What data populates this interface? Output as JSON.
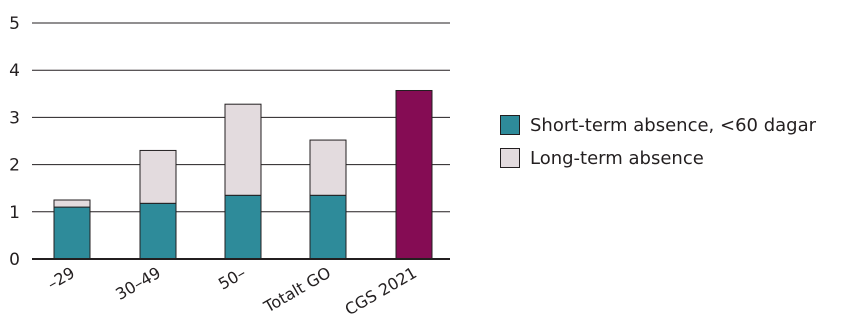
{
  "chart_data": {
    "type": "bar",
    "stacked": true,
    "categories": [
      "–29",
      "30–49",
      "50–",
      "Totalt GO",
      "CGS 2021"
    ],
    "series": [
      {
        "name": "Short-term absence, <60 dagar",
        "values": [
          1.1,
          1.18,
          1.35,
          1.35,
          null
        ],
        "color": "#2e8b9a"
      },
      {
        "name": "Long-term absence",
        "values": [
          0.15,
          1.12,
          1.93,
          1.17,
          null
        ],
        "color": "#e3dbde"
      }
    ],
    "highlight": {
      "category": "CGS 2021",
      "value": 3.57,
      "color": "#850c54"
    },
    "ylim": [
      0,
      5
    ],
    "yticks": [
      0,
      1,
      2,
      3,
      4,
      5
    ],
    "grid": true,
    "legend_position": "right",
    "title": "",
    "xlabel": "",
    "ylabel": ""
  }
}
